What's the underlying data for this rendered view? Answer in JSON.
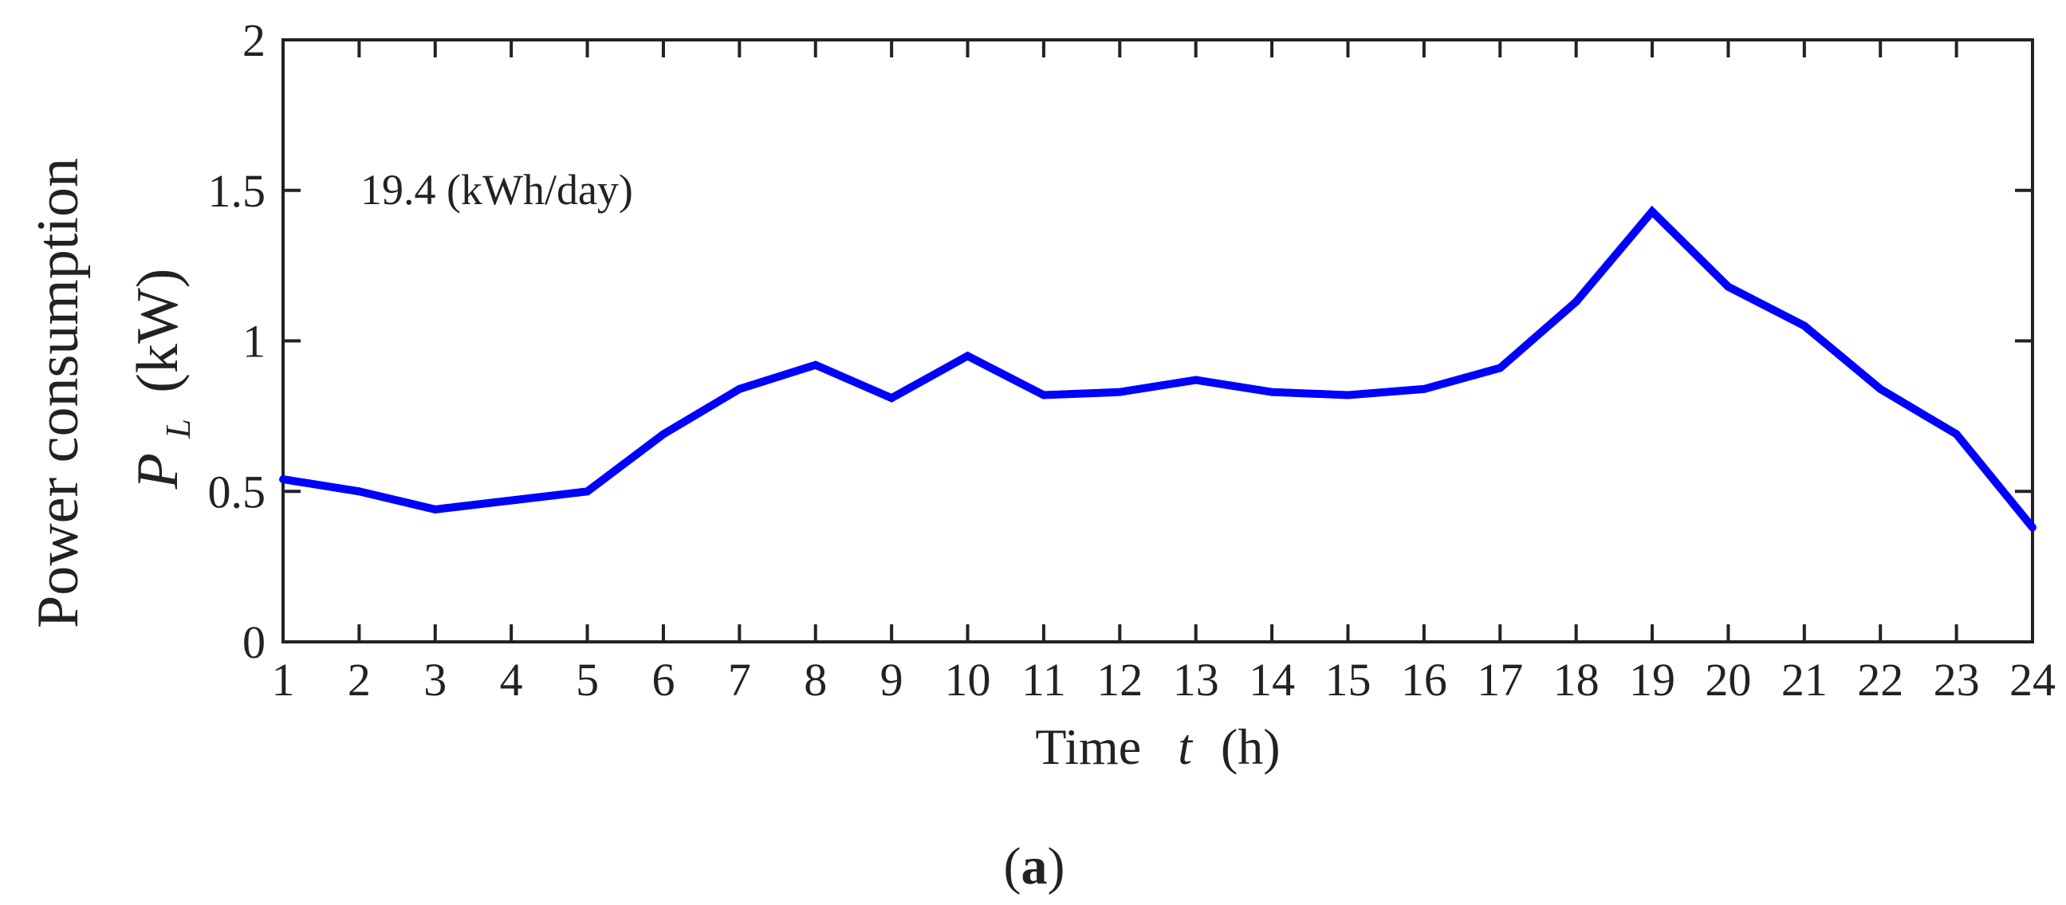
{
  "chart_data": {
    "type": "line",
    "x": [
      1,
      2,
      3,
      4,
      5,
      6,
      7,
      8,
      9,
      10,
      11,
      12,
      13,
      14,
      15,
      16,
      17,
      18,
      19,
      20,
      21,
      22,
      23,
      24
    ],
    "series": [
      {
        "values": [
          0.54,
          0.5,
          0.44,
          0.47,
          0.5,
          0.69,
          0.84,
          0.92,
          0.81,
          0.95,
          0.82,
          0.83,
          0.87,
          0.83,
          0.82,
          0.84,
          0.91,
          1.13,
          1.43,
          1.18,
          1.05,
          0.84,
          0.69,
          0.38
        ],
        "color": "#0000ff"
      }
    ],
    "xlim": [
      1,
      24
    ],
    "ylim": [
      0,
      2
    ],
    "xticks": [
      "1",
      "2",
      "3",
      "4",
      "5",
      "6",
      "7",
      "8",
      "9",
      "10",
      "11",
      "12",
      "13",
      "14",
      "15",
      "16",
      "17",
      "18",
      "19",
      "20",
      "21",
      "22",
      "23",
      "24"
    ],
    "yticks": [
      "0",
      "0.5",
      "1",
      "1.5",
      "2"
    ],
    "xlabel": {
      "text": "Time",
      "var": "t",
      "unit": "(h)"
    },
    "ylabel": {
      "line1": "Power consumption",
      "var": "P",
      "sub": "L",
      "unit": "(kW)"
    },
    "annotation": "19.4 (kWh/day)",
    "grid": false,
    "legend": "none"
  },
  "caption": {
    "open": "(",
    "letter": "a",
    "close": ")"
  }
}
